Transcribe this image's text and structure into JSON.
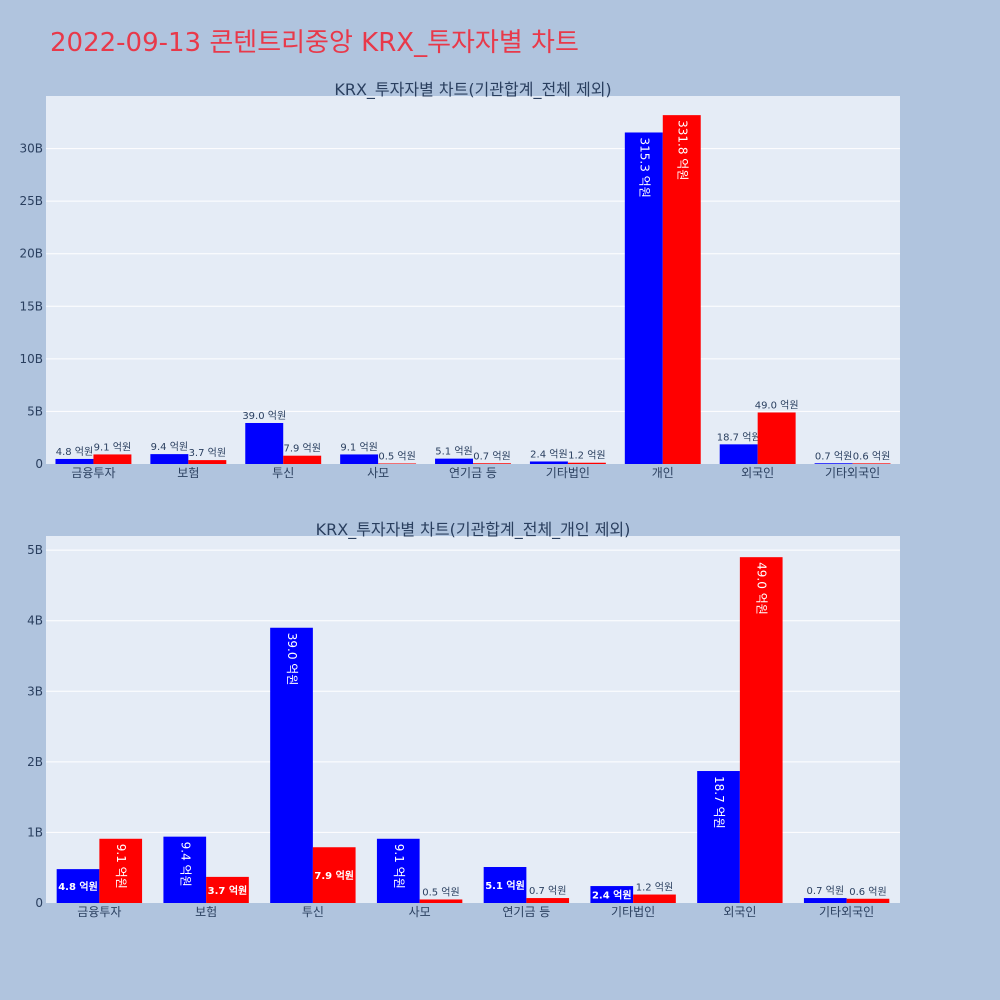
{
  "page": {
    "title": "2022-09-13 콘텐트리중앙 KRX_투자자별 차트"
  },
  "colors": {
    "buy": "#0000ff",
    "sell": "#ff0000",
    "plot_bg": "#e5ecf6",
    "paper_bg": "#b0c4de",
    "grid": "#ffffff",
    "text": "#2a3f5f"
  },
  "chart_data": [
    {
      "type": "bar",
      "title": "KRX_투자자별 차트(기관합계_전체 제외)",
      "categories": [
        "금융투자",
        "보험",
        "투신",
        "사모",
        "연기금 등",
        "기타법인",
        "개인",
        "외국인",
        "기타외국인"
      ],
      "series": [
        {
          "color": "#0000ff",
          "values": [
            480000000,
            940000000,
            3900000000,
            910000000,
            510000000,
            240000000,
            31530000000,
            1870000000,
            70000000
          ],
          "labels": [
            "4.8 억원",
            "9.4 억원",
            "39.0 억원",
            "9.1 억원",
            "5.1 억원",
            "2.4 억원",
            "315.3 억원",
            "18.7 억원",
            "0.7 억원"
          ]
        },
        {
          "color": "#ff0000",
          "values": [
            910000000,
            370000000,
            790000000,
            50000000,
            70000000,
            120000000,
            33180000000,
            4900000000,
            60000000
          ],
          "labels": [
            "9.1 억원",
            "3.7 억원",
            "7.9 억원",
            "0.5 억원",
            "0.7 억원",
            "1.2 억원",
            "331.8 억원",
            "49.0 억원",
            "0.6 억원"
          ]
        }
      ],
      "yticks": [
        0,
        5000000000,
        10000000000,
        15000000000,
        20000000000,
        25000000000,
        30000000000
      ],
      "ytick_labels": [
        "0",
        "5B",
        "10B",
        "15B",
        "20B",
        "25B",
        "30B"
      ],
      "ylim": [
        0,
        35000000000
      ],
      "grid": true,
      "legend": "none"
    },
    {
      "type": "bar",
      "title": "KRX_투자자별 차트(기관합계_전체_개인 제외)",
      "categories": [
        "금융투자",
        "보험",
        "투신",
        "사모",
        "연기금 등",
        "기타법인",
        "외국인",
        "기타외국인"
      ],
      "series": [
        {
          "color": "#0000ff",
          "values": [
            480000000,
            940000000,
            3900000000,
            910000000,
            510000000,
            240000000,
            1870000000,
            70000000
          ],
          "labels": [
            "4.8 억원",
            "9.4 억원",
            "39.0 억원",
            "9.1 억원",
            "5.1 억원",
            "2.4 억원",
            "18.7 억원",
            "0.7 억원"
          ]
        },
        {
          "color": "#ff0000",
          "values": [
            910000000,
            370000000,
            790000000,
            50000000,
            70000000,
            120000000,
            4900000000,
            60000000
          ],
          "labels": [
            "9.1 억원",
            "3.7 억원",
            "7.9 억원",
            "0.5 억원",
            "0.7 억원",
            "1.2 억원",
            "49.0 억원",
            "0.6 억원"
          ]
        }
      ],
      "yticks": [
        0,
        1000000000,
        2000000000,
        3000000000,
        4000000000,
        5000000000
      ],
      "ytick_labels": [
        "0",
        "1B",
        "2B",
        "3B",
        "4B",
        "5B"
      ],
      "ylim": [
        0,
        5200000000
      ],
      "grid": true,
      "legend": "none"
    }
  ]
}
